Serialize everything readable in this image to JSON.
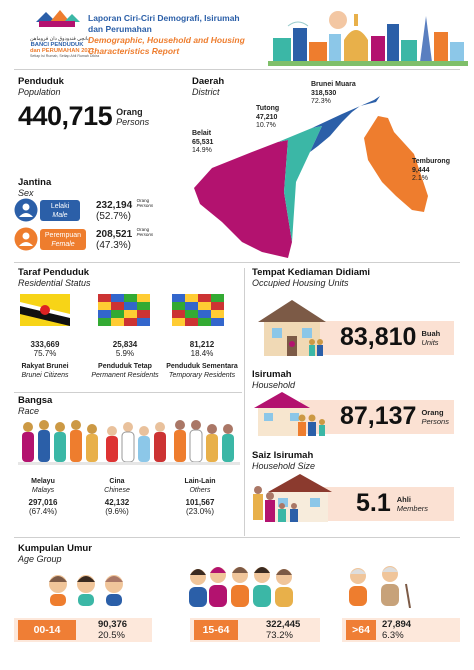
{
  "header": {
    "logo_jawi": "بانچي فندودوق دان فروماهن",
    "logo_line1": "BANCI PENDUDUK",
    "logo_line2": "dan PERUMAHAN 2021",
    "logo_tag": "Setiap Isi Rumah, Setiap Ahli Rumah Dikira",
    "title_ms_1": "Laporan Ciri-Ciri Demografi, Isirumah",
    "title_ms_2": "dan Perumahan",
    "title_en_1": "Demographic, Household and Housing",
    "title_en_2": "Characteristics Report"
  },
  "population": {
    "title": "Penduduk",
    "subtitle": "Population",
    "value": "440,715",
    "unit_ms": "Orang",
    "unit_en": "Persons"
  },
  "district": {
    "title": "Daerah",
    "subtitle": "District",
    "items": [
      {
        "name": "Brunei Muara",
        "value": "318,530",
        "pct": "72.3%",
        "color": "#2b5fa8"
      },
      {
        "name": "Tutong",
        "value": "47,210",
        "pct": "10.7%",
        "color": "#3bb7a6"
      },
      {
        "name": "Belait",
        "value": "65,531",
        "pct": "14.9%",
        "color": "#b3126f"
      },
      {
        "name": "Temburong",
        "value": "9,444",
        "pct": "2.1%",
        "color": "#ee7d2e"
      }
    ]
  },
  "sex": {
    "title": "Jantina",
    "subtitle": "Sex",
    "male_ms": "Lelaki",
    "male_en": "Male",
    "male_value": "232,194",
    "male_pct": "(52.7%)",
    "female_ms": "Perempuan",
    "female_en": "Female",
    "female_value": "208,521",
    "female_pct": "(47.3%)",
    "unit_ms": "Orang",
    "unit_en": "Persons",
    "male_color": "#2b5fa8",
    "female_color": "#ee7d2e"
  },
  "residential": {
    "title": "Taraf Penduduk",
    "subtitle": "Residential Status",
    "items": [
      {
        "value": "333,669",
        "pct": "75.7%",
        "label_ms": "Rakyat Brunei",
        "label_en": "Brunei Citizens"
      },
      {
        "value": "25,834",
        "pct": "5.9%",
        "label_ms": "Penduduk Tetap",
        "label_en": "Permanent Residents"
      },
      {
        "value": "81,212",
        "pct": "18.4%",
        "label_ms": "Penduduk Sementara",
        "label_en": "Temporary Residents"
      }
    ]
  },
  "housing": {
    "title": "Tempat Kediaman Didiami",
    "subtitle": "Occupied Housing Units",
    "value": "83,810",
    "unit_ms": "Buah",
    "unit_en": "Units"
  },
  "household": {
    "title": "Isirumah",
    "subtitle": "Household",
    "value": "87,137",
    "unit_ms": "Orang",
    "unit_en": "Persons"
  },
  "household_size": {
    "title": "Saiz Isirumah",
    "subtitle": "Household Size",
    "value": "5.1",
    "unit_ms": "Ahli",
    "unit_en": "Members"
  },
  "race": {
    "title": "Bangsa",
    "subtitle": "Race",
    "items": [
      {
        "name_ms": "Melayu",
        "name_en": "Malays",
        "value": "297,016",
        "pct": "(67.4%)"
      },
      {
        "name_ms": "Cina",
        "name_en": "Chinese",
        "value": "42,132",
        "pct": "(9.6%)"
      },
      {
        "name_ms": "Lain-Lain",
        "name_en": "Others",
        "value": "101,567",
        "pct": "(23.0%)"
      }
    ]
  },
  "age": {
    "title": "Kumpulan Umur",
    "subtitle": "Age Group",
    "items": [
      {
        "range": "00-14",
        "value": "90,376",
        "pct": "20.5%"
      },
      {
        "range": "15-64",
        "value": "322,445",
        "pct": "73.2%"
      },
      {
        "range": ">64",
        "value": "27,894",
        "pct": "6.3%"
      }
    ]
  }
}
